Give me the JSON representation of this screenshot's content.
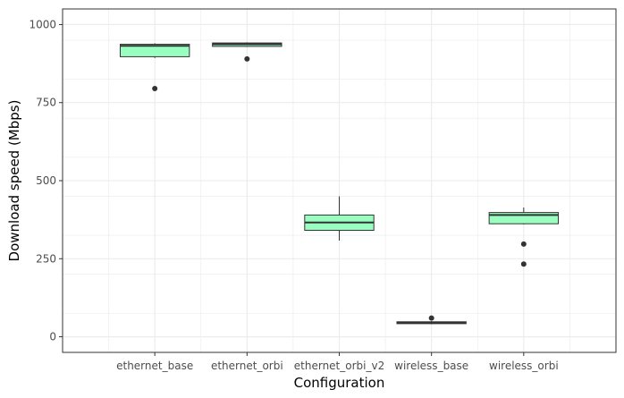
{
  "chart_data": {
    "type": "box",
    "xlabel": "Configuration",
    "ylabel": "Download speed (Mbps)",
    "ylim": [
      -50,
      1050
    ],
    "yticks": [
      0,
      250,
      500,
      750,
      1000
    ],
    "ytick_labels": [
      "0",
      "250",
      "500",
      "750",
      "1000"
    ],
    "grid": true,
    "categories": [
      "ethernet_base",
      "ethernet_orbi",
      "ethernet_orbi_v2",
      "wireless_base",
      "wireless_orbi"
    ],
    "boxes": [
      {
        "category": "ethernet_base",
        "whisker_low": 893,
        "q1": 897,
        "median": 932,
        "q3": 937,
        "whisker_high": 940,
        "outliers": [
          795
        ]
      },
      {
        "category": "ethernet_orbi",
        "whisker_low": 928,
        "q1": 930,
        "median": 937,
        "q3": 941,
        "whisker_high": 943,
        "outliers": [
          890
        ]
      },
      {
        "category": "ethernet_orbi_v2",
        "whisker_low": 308,
        "q1": 341,
        "median": 366,
        "q3": 390,
        "whisker_high": 450,
        "outliers": []
      },
      {
        "category": "wireless_base",
        "whisker_low": 40,
        "q1": 42,
        "median": 45,
        "q3": 48,
        "whisker_high": 50,
        "outliers": [
          60
        ]
      },
      {
        "category": "wireless_orbi",
        "whisker_low": 360,
        "q1": 362,
        "median": 390,
        "q3": 398,
        "whisker_high": 414,
        "outliers": [
          297,
          233
        ]
      }
    ],
    "colors": {
      "box_fill": "#99ffc0",
      "box_stroke": "#333333",
      "grid": "#ebebeb",
      "panel_border": "#333333"
    }
  }
}
